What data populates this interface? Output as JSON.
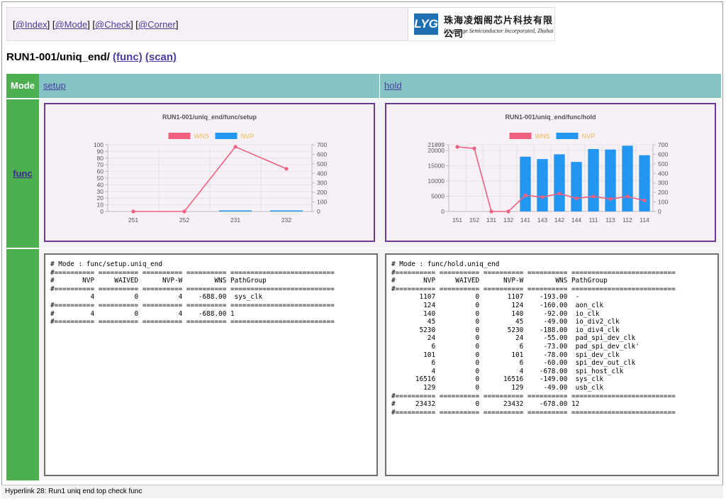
{
  "nav": {
    "links": [
      {
        "label": "@Index"
      },
      {
        "label": "@Mode"
      },
      {
        "label": "@Check"
      },
      {
        "label": "@Corner"
      }
    ]
  },
  "logo": {
    "mark": "LYG",
    "cn": "珠海凌烟阁芯片科技有限公司",
    "en": "Lingyange Semiconductor Incorporated, Zhuhai"
  },
  "page": {
    "title_prefix": "RUN1-001/uniq_end/ ",
    "link1": "(func)",
    "link2": "(scan)"
  },
  "table": {
    "mode_header": "Mode",
    "col1": "setup",
    "col2": "hold",
    "row_label": "func"
  },
  "colors": {
    "wns": "#f0607f",
    "nvp": "#2196f3",
    "green": "#4caf50",
    "teal": "#84c4c4",
    "box": "#6b3a8c"
  },
  "charts": [
    {
      "chart_data": {
        "type": "bar+line",
        "title": "RUN1-001/uniq_end/func/setup",
        "legend": [
          "WNS",
          "NVP"
        ],
        "categories": [
          "251",
          "252",
          "231",
          "232"
        ],
        "series": [
          {
            "name": "WNS",
            "type": "line",
            "values": [
              0,
              0,
              97,
              64
            ]
          },
          {
            "name": "NVP",
            "type": "bar",
            "values": [
              0,
              0,
              4,
              4
            ]
          }
        ],
        "y_left": {
          "min": 0,
          "max": 100,
          "ticks": [
            "0",
            "10",
            "20",
            "30",
            "40",
            "50",
            "60",
            "70",
            "80",
            "90",
            "100"
          ]
        },
        "y_right": {
          "min": 0,
          "max": 700,
          "ticks": [
            "0",
            "100",
            "200",
            "300",
            "400",
            "500",
            "600",
            "700"
          ]
        },
        "grid": true,
        "legend_position": "top"
      }
    },
    {
      "chart_data": {
        "type": "bar+line",
        "title": "RUN1-001/uniq_end/func/hold",
        "legend": [
          "WNS",
          "NVP"
        ],
        "categories": [
          "151",
          "152",
          "131",
          "132",
          "141",
          "143",
          "142",
          "144",
          "111",
          "113",
          "112",
          "114"
        ],
        "series": [
          {
            "name": "WNS",
            "type": "line",
            "values": [
              21200,
              20700,
              0,
              0,
              5300,
              4700,
              5900,
              4300,
              4900,
              4100,
              4900,
              3600
            ]
          },
          {
            "name": "NVP",
            "type": "bar",
            "values": [
              0,
              0,
              0,
              0,
              575,
              550,
              600,
              520,
              655,
              650,
              690,
              590
            ]
          }
        ],
        "y_left": {
          "min": 0,
          "max": 21899,
          "ticks": [
            "0",
            "5000",
            "10000",
            "15000",
            "20000",
            "21899"
          ]
        },
        "y_right": {
          "min": 0,
          "max": 700,
          "ticks": [
            "0",
            "100",
            "200",
            "300",
            "400",
            "500",
            "600",
            "700"
          ]
        },
        "grid": true,
        "legend_position": "top"
      }
    }
  ],
  "reports": {
    "setup": "# Mode : func/setup.uniq_end\n#========== ========== ========== ========== ==========================\n#       NVP     WAIVED      NVP-W        WNS PathGroup\n#========== ========== ========== ========== ==========================\n          4          0          4    -688.00  sys_clk\n#========== ========== ========== ========== ==========================\n#         4          0          4    -688.00 1\n#========== ========== ========== ========== ==========================",
    "hold": "# Mode : func/hold.uniq_end\n#========== ========== ========== ========== ==========================\n#       NVP     WAIVED      NVP-W        WNS PathGroup\n#========== ========== ========== ========== ==========================\n       1107          0       1107    -193.00  -\n        124          0        124    -160.00  aon_clk\n        140          0        140     -92.00  io_clk\n         45          0         45     -49.00  io_div2_clk\n       5230          0       5230    -188.00  io_div4_clk\n         24          0         24     -55.00  pad_spi_dev_clk\n          6          0          6     -73.00  pad_spi_dev_clk'\n        101          0        101     -78.00  spi_dev_clk\n          6          0          6     -60.00  spi_dev_out_clk\n          4          0          4    -678.00  spi_host_clk\n      16516          0      16516    -149.00  sys_clk\n        129          0        129     -49.00  usb_clk\n#========== ========== ========== ========== ==========================\n#     23432          0      23432    -678.00 12\n#========== ========== ========== ========== =========================="
  },
  "status": {
    "text": "Hyperlink 28: Run1 uniq end top check func"
  }
}
